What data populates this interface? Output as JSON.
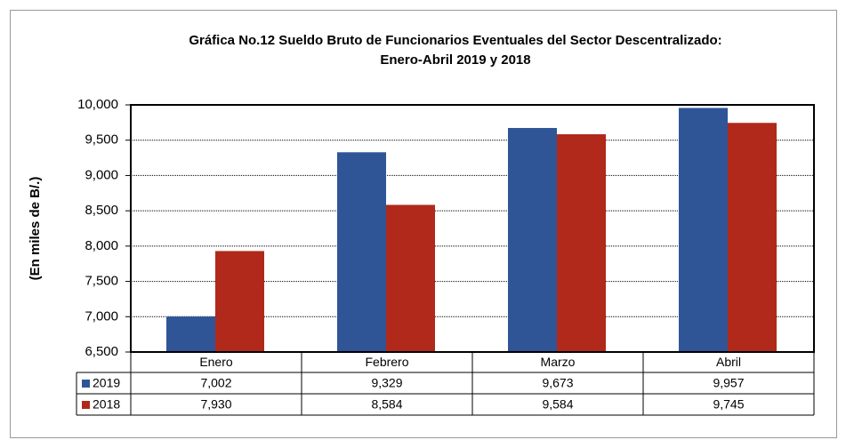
{
  "chart_data": {
    "type": "bar",
    "title": [
      "Gráfica No.12 Sueldo Bruto de Funcionarios Eventuales del Sector Descentralizado:",
      "Enero-Abril 2019 y 2018"
    ],
    "y_label": "(En miles de B/.)",
    "categories": [
      "Enero",
      "Febrero",
      "Marzo",
      "Abril"
    ],
    "series": [
      {
        "name": "2019",
        "color": "#2f5597",
        "values": [
          7002,
          9329,
          9673,
          9957
        ],
        "value_labels": [
          "7,002",
          "9,329",
          "9,673",
          "9,957"
        ]
      },
      {
        "name": "2018",
        "color": "#b0291a",
        "values": [
          7930,
          8584,
          9584,
          9745
        ],
        "value_labels": [
          "7,930",
          "8,584",
          "9,584",
          "9,745"
        ]
      }
    ],
    "ylim": [
      6500,
      10000
    ],
    "yticks": [
      {
        "value": 6500,
        "label": "6,500"
      },
      {
        "value": 7000,
        "label": "7,000"
      },
      {
        "value": 7500,
        "label": "7,500"
      },
      {
        "value": 8000,
        "label": "8,000"
      },
      {
        "value": 8500,
        "label": "8,500"
      },
      {
        "value": 9000,
        "label": "9,000"
      },
      {
        "value": 9500,
        "label": "9,500"
      },
      {
        "value": 10000,
        "label": "10,000"
      }
    ],
    "grid": true
  }
}
